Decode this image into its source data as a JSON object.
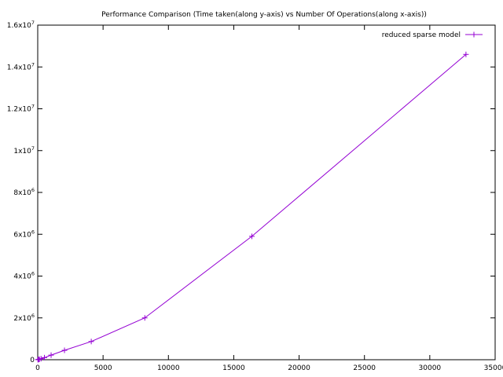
{
  "chart_data": {
    "type": "line",
    "title": "Performance Comparison (Time taken(along y-axis) vs Number Of Operations(along x-axis))",
    "xlabel": "",
    "ylabel": "",
    "xlim": [
      0,
      35000
    ],
    "ylim": [
      0,
      16000000
    ],
    "x_ticks": [
      {
        "value": 0,
        "label": "0"
      },
      {
        "value": 5000,
        "label": "5000"
      },
      {
        "value": 10000,
        "label": "10000"
      },
      {
        "value": 15000,
        "label": "15000"
      },
      {
        "value": 20000,
        "label": "20000"
      },
      {
        "value": 25000,
        "label": "25000"
      },
      {
        "value": 30000,
        "label": "30000"
      },
      {
        "value": 35000,
        "label": "35000"
      }
    ],
    "y_ticks": [
      {
        "value": 0,
        "mant": "0",
        "exp": ""
      },
      {
        "value": 2000000,
        "mant": "2x10",
        "exp": "6"
      },
      {
        "value": 4000000,
        "mant": "4x10",
        "exp": "6"
      },
      {
        "value": 6000000,
        "mant": "6x10",
        "exp": "6"
      },
      {
        "value": 8000000,
        "mant": "8x10",
        "exp": "6"
      },
      {
        "value": 10000000,
        "mant": "1x10",
        "exp": "7"
      },
      {
        "value": 12000000,
        "mant": "1.2x10",
        "exp": "7"
      },
      {
        "value": 14000000,
        "mant": "1.4x10",
        "exp": "7"
      },
      {
        "value": 16000000,
        "mant": "1.6x10",
        "exp": "7"
      }
    ],
    "legend_position": "top-right",
    "grid": false,
    "series": [
      {
        "name": "reduced sparse model",
        "color": "#9400d3",
        "marker": "plus",
        "x": [
          16,
          32,
          64,
          128,
          256,
          512,
          1024,
          2048,
          4096,
          8192,
          16384,
          32768
        ],
        "y": [
          5000,
          8000,
          12000,
          20000,
          50000,
          100000,
          220000,
          450000,
          870000,
          2000000,
          5900000,
          14600000
        ]
      }
    ]
  }
}
